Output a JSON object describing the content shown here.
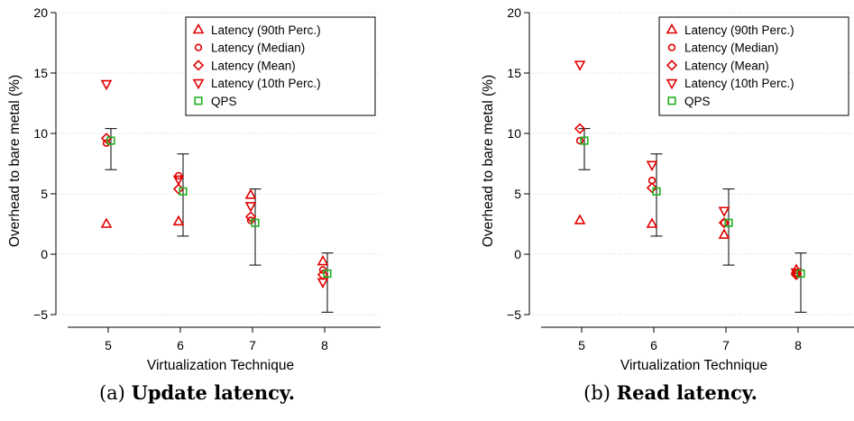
{
  "chart_data": [
    {
      "type": "scatter",
      "caption_tag": "(a)",
      "caption_title": "Update latency.",
      "xlabel": "Virtualization Technique",
      "ylabel": "Overhead to bare metal (%)",
      "categories": [
        "5",
        "6",
        "7",
        "8"
      ],
      "ylim": [
        -5,
        20
      ],
      "yticks": [
        -5,
        0,
        5,
        10,
        15,
        20
      ],
      "yticklabels": [
        "−5",
        "0",
        "5",
        "10",
        "15",
        "20"
      ],
      "grid": true,
      "legend_position": "top-right",
      "series": [
        {
          "name": "Latency (90th Perc.)",
          "marker": "triangle-up",
          "color": "#e00000",
          "values": [
            2.5,
            2.7,
            4.9,
            -0.6
          ]
        },
        {
          "name": "Latency (Median)",
          "marker": "circle",
          "color": "#e00000",
          "values": [
            9.2,
            6.5,
            2.8,
            -1.3
          ]
        },
        {
          "name": "Latency (Mean)",
          "marker": "diamond",
          "color": "#e00000",
          "values": [
            9.6,
            5.4,
            3.1,
            -1.7
          ]
        },
        {
          "name": "Latency (10th Perc.)",
          "marker": "triangle-down",
          "color": "#e00000",
          "values": [
            14.1,
            6.2,
            4.0,
            -2.3
          ]
        },
        {
          "name": "QPS",
          "marker": "square",
          "color": "#20b020",
          "values": [
            9.4,
            5.2,
            2.6,
            -1.6
          ],
          "error_low": [
            7.0,
            1.5,
            -0.9,
            -4.8
          ],
          "error_high": [
            10.4,
            8.3,
            5.4,
            0.1
          ]
        }
      ]
    },
    {
      "type": "scatter",
      "caption_tag": "(b)",
      "caption_title": "Read latency.",
      "xlabel": "Virtualization Technique",
      "ylabel": "Overhead to bare metal (%)",
      "categories": [
        "5",
        "6",
        "7",
        "8"
      ],
      "ylim": [
        -5,
        20
      ],
      "yticks": [
        -5,
        0,
        5,
        10,
        15,
        20
      ],
      "yticklabels": [
        "−5",
        "0",
        "5",
        "10",
        "15",
        "20"
      ],
      "grid": true,
      "legend_position": "top-right",
      "series": [
        {
          "name": "Latency (90th Perc.)",
          "marker": "triangle-up",
          "color": "#e00000",
          "values": [
            2.8,
            2.5,
            1.6,
            -1.3
          ]
        },
        {
          "name": "Latency (Median)",
          "marker": "circle",
          "color": "#e00000",
          "values": [
            9.4,
            6.1,
            2.6,
            -1.6
          ]
        },
        {
          "name": "Latency (Mean)",
          "marker": "diamond",
          "color": "#e00000",
          "values": [
            10.4,
            5.5,
            2.6,
            -1.7
          ]
        },
        {
          "name": "Latency (10th Perc.)",
          "marker": "triangle-down",
          "color": "#e00000",
          "values": [
            15.7,
            7.4,
            3.6,
            -1.5
          ]
        },
        {
          "name": "QPS",
          "marker": "square",
          "color": "#20b020",
          "values": [
            9.4,
            5.2,
            2.6,
            -1.6
          ],
          "error_low": [
            7.0,
            1.5,
            -0.9,
            -4.8
          ],
          "error_high": [
            10.4,
            8.3,
            5.4,
            0.1
          ]
        }
      ]
    }
  ]
}
